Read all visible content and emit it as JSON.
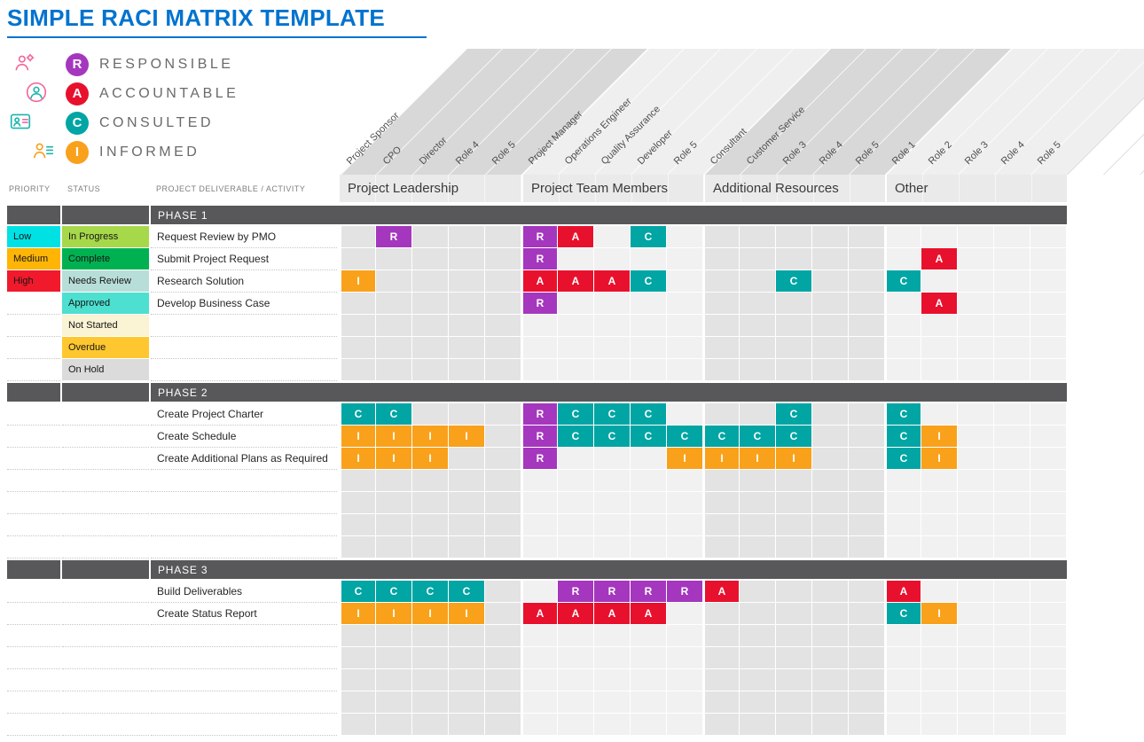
{
  "title": "SIMPLE RACI MATRIX TEMPLATE",
  "legend": {
    "items": [
      {
        "letter": "R",
        "label": "RESPONSIBLE",
        "icon": "person-gear-icon"
      },
      {
        "letter": "A",
        "label": "ACCOUNTABLE",
        "icon": "person-circle-icon"
      },
      {
        "letter": "C",
        "label": "CONSULTED",
        "icon": "id-card-icon"
      },
      {
        "letter": "I",
        "label": "INFORMED",
        "icon": "person-checklist-icon"
      }
    ]
  },
  "colors": {
    "title": "#0073CF",
    "phase_bar": "#58585A",
    "band_dark": "#E3E3E3",
    "band_light": "#F1F1F1",
    "header_band_dark": "#D8D8D8",
    "header_band_light": "#EFEFEF",
    "raci": {
      "R": "#A437BE",
      "A": "#E8112D",
      "C": "#00A5A4",
      "I": "#F9A11B"
    },
    "priority": {
      "Low": "#00E1E4",
      "Medium": "#FFB506",
      "High": "#F11A2C"
    },
    "status": {
      "In Progress": "#A6D84A",
      "Complete": "#00B152",
      "Needs Review": "#B8DED9",
      "Approved": "#4DE0D0",
      "Not Started": "#FAF3D4",
      "Overdue": "#FFC72F",
      "On Hold": "#DBDBDB"
    }
  },
  "table": {
    "left_headers": [
      "PRIORITY",
      "STATUS",
      "PROJECT DELIVERABLE / ACTIVITY"
    ],
    "groups": [
      {
        "label": "Project Leadership",
        "roles": [
          "Project Sponsor",
          "CPO",
          "Director",
          "Role 4",
          "Role 5"
        ]
      },
      {
        "label": "Project Team Members",
        "roles": [
          "Project Manager",
          "Operations Engineer",
          "Quality Assurance",
          "Developer",
          "Role 5"
        ]
      },
      {
        "label": "Additional Resources",
        "roles": [
          "Consultant",
          "Customer Service",
          "Role 3",
          "Role 4",
          "Role 5"
        ]
      },
      {
        "label": "Other",
        "roles": [
          "Role 1",
          "Role 2",
          "Role 3",
          "Role 4",
          "Role 5"
        ]
      }
    ],
    "rows": [
      {
        "type": "phase",
        "label": "PHASE 1"
      },
      {
        "type": "task",
        "priority": "Low",
        "status": "In Progress",
        "task": "Request Review by PMO",
        "marks": {
          "1": "R",
          "5": "R",
          "6": "A",
          "8": "C"
        }
      },
      {
        "type": "task",
        "priority": "Medium",
        "status": "Complete",
        "task": "Submit Project Request",
        "marks": {
          "5": "R",
          "16": "A"
        }
      },
      {
        "type": "task",
        "priority": "High",
        "status": "Needs Review",
        "task": "Research Solution",
        "marks": {
          "0": "I",
          "5": "A",
          "6": "A",
          "7": "A",
          "8": "C",
          "12": "C",
          "15": "C"
        }
      },
      {
        "type": "task",
        "priority": "",
        "status": "Approved",
        "task": "Develop Business Case",
        "marks": {
          "5": "R",
          "16": "A"
        }
      },
      {
        "type": "task",
        "priority": "",
        "status": "Not Started",
        "task": "",
        "marks": {}
      },
      {
        "type": "task",
        "priority": "",
        "status": "Overdue",
        "task": "",
        "marks": {}
      },
      {
        "type": "task",
        "priority": "",
        "status": "On Hold",
        "task": "",
        "marks": {}
      },
      {
        "type": "phase",
        "label": "PHASE 2"
      },
      {
        "type": "task",
        "priority": "",
        "status": "",
        "task": "Create Project Charter",
        "marks": {
          "0": "C",
          "1": "C",
          "5": "R",
          "6": "C",
          "7": "C",
          "8": "C",
          "12": "C",
          "15": "C"
        }
      },
      {
        "type": "task",
        "priority": "",
        "status": "",
        "task": "Create Schedule",
        "marks": {
          "0": "I",
          "1": "I",
          "2": "I",
          "3": "I",
          "5": "R",
          "6": "C",
          "7": "C",
          "8": "C",
          "9": "C",
          "10": "C",
          "11": "C",
          "12": "C",
          "15": "C",
          "16": "I"
        }
      },
      {
        "type": "task",
        "priority": "",
        "status": "",
        "task": "Create Additional Plans as Required",
        "marks": {
          "0": "I",
          "1": "I",
          "2": "I",
          "5": "R",
          "9": "I",
          "10": "I",
          "11": "I",
          "12": "I",
          "15": "C",
          "16": "I"
        }
      },
      {
        "type": "task",
        "priority": "",
        "status": "",
        "task": "",
        "marks": {}
      },
      {
        "type": "task",
        "priority": "",
        "status": "",
        "task": "",
        "marks": {}
      },
      {
        "type": "task",
        "priority": "",
        "status": "",
        "task": "",
        "marks": {}
      },
      {
        "type": "task",
        "priority": "",
        "status": "",
        "task": "",
        "marks": {}
      },
      {
        "type": "phase",
        "label": "PHASE 3"
      },
      {
        "type": "task",
        "priority": "",
        "status": "",
        "task": "Build Deliverables",
        "marks": {
          "0": "C",
          "1": "C",
          "2": "C",
          "3": "C",
          "6": "R",
          "7": "R",
          "8": "R",
          "9": "R",
          "10": "A",
          "15": "A"
        }
      },
      {
        "type": "task",
        "priority": "",
        "status": "",
        "task": "Create Status Report",
        "marks": {
          "0": "I",
          "1": "I",
          "2": "I",
          "3": "I",
          "5": "A",
          "6": "A",
          "7": "A",
          "8": "A",
          "15": "C",
          "16": "I"
        }
      },
      {
        "type": "task",
        "priority": "",
        "status": "",
        "task": "",
        "marks": {}
      },
      {
        "type": "task",
        "priority": "",
        "status": "",
        "task": "",
        "marks": {}
      },
      {
        "type": "task",
        "priority": "",
        "status": "",
        "task": "",
        "marks": {}
      },
      {
        "type": "task",
        "priority": "",
        "status": "",
        "task": "",
        "marks": {}
      },
      {
        "type": "task",
        "priority": "",
        "status": "",
        "task": "",
        "marks": {}
      }
    ]
  }
}
